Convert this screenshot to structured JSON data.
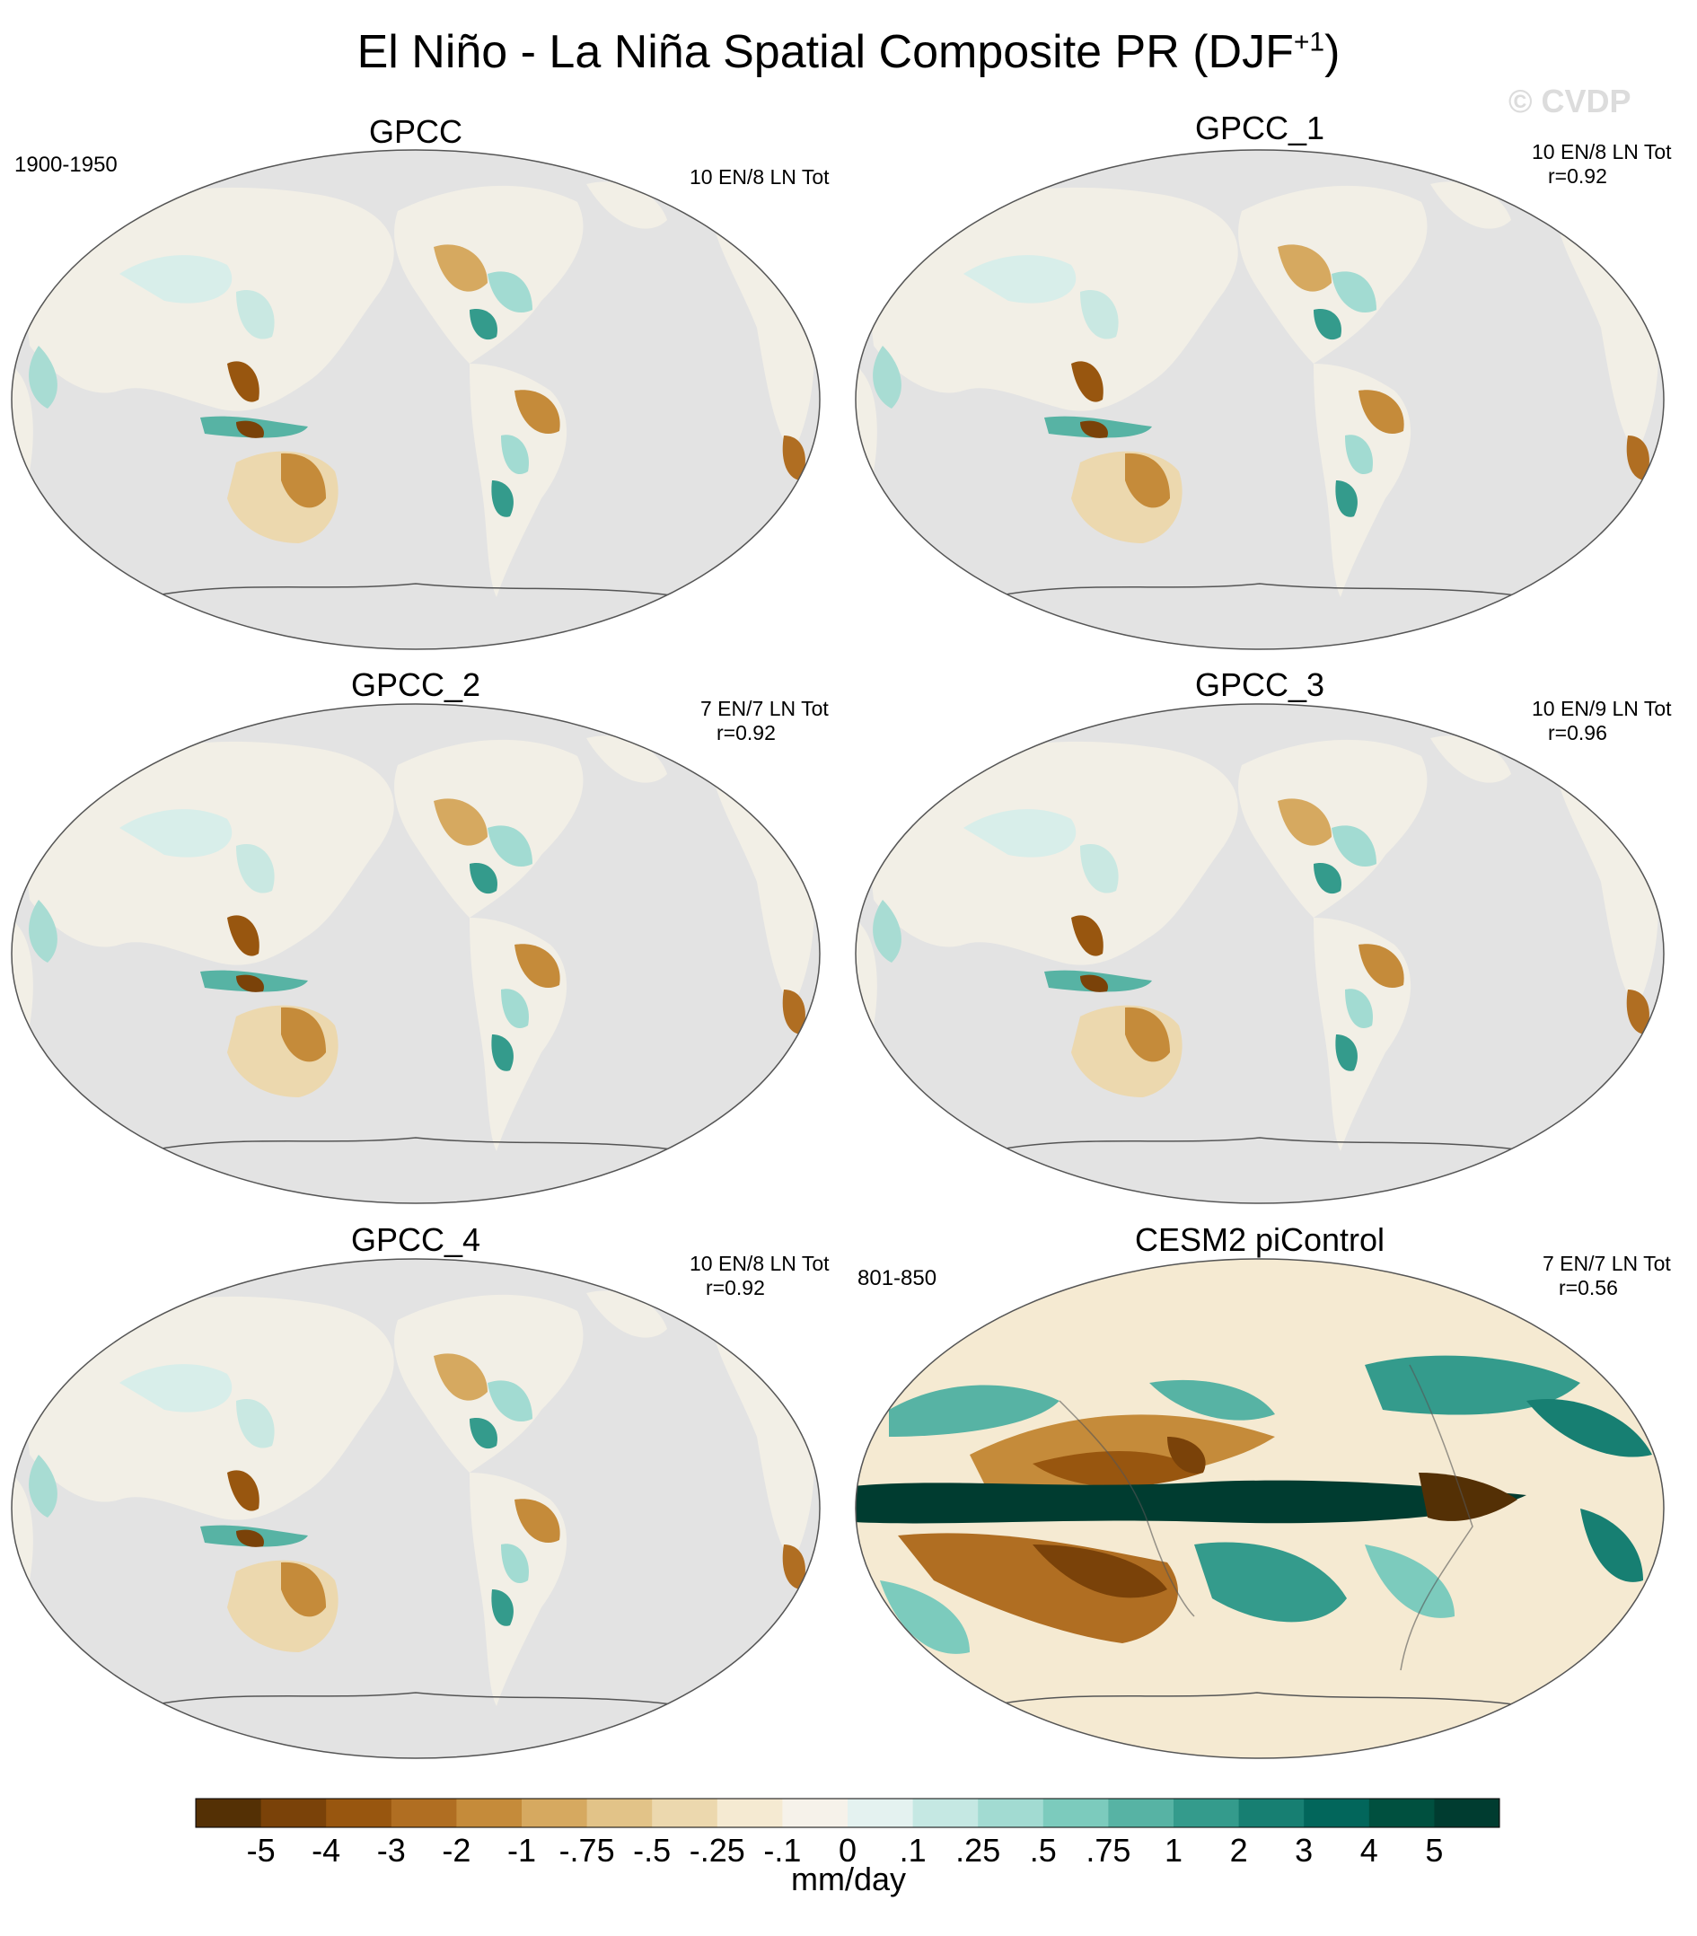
{
  "title": "El Niño - La Niña Spatial Composite PR (DJF",
  "title_sup": "+1",
  "title_close": ")",
  "watermark": "© CVDP",
  "panels": [
    {
      "name": "GPCC",
      "years": "1900-1950",
      "events": "10 EN/8 LN Tot",
      "corr": ""
    },
    {
      "name": "GPCC_1",
      "years": "",
      "events": "10 EN/8 LN Tot",
      "corr": "r=0.92"
    },
    {
      "name": "GPCC_2",
      "years": "",
      "events": "7 EN/7 LN Tot",
      "corr": "r=0.92"
    },
    {
      "name": "GPCC_3",
      "years": "",
      "events": "10 EN/9 LN Tot",
      "corr": "r=0.96"
    },
    {
      "name": "GPCC_4",
      "years": "",
      "events": "10 EN/8 LN Tot",
      "corr": "r=0.92"
    },
    {
      "name": "CESM2 piControl",
      "years": "801-850",
      "events": "7 EN/7 LN Tot",
      "corr": "r=0.56"
    }
  ],
  "colorbar": {
    "units": "mm/day",
    "labels": [
      "-5",
      "-4",
      "-3",
      "-2",
      "-1",
      "-.75",
      "-.5",
      "-.25",
      "-.1",
      "0",
      ".1",
      ".25",
      ".5",
      ".75",
      "1",
      "2",
      "3",
      "4",
      "5"
    ],
    "colors": [
      "#543005",
      "#7a4209",
      "#98560f",
      "#b06e22",
      "#c58b3a",
      "#d6a960",
      "#e2c388",
      "#ecd8ae",
      "#f5ead2",
      "#f6f2ea",
      "#e4f2f0",
      "#c5e8e3",
      "#a2dbd2",
      "#7ccbbd",
      "#57b3a4",
      "#349b8c",
      "#177f72",
      "#02665b",
      "#00503f",
      "#003c30"
    ]
  },
  "colors": {
    "ocean": "#e3e3e3",
    "land": "#f2efe6",
    "coast": "#555555"
  }
}
